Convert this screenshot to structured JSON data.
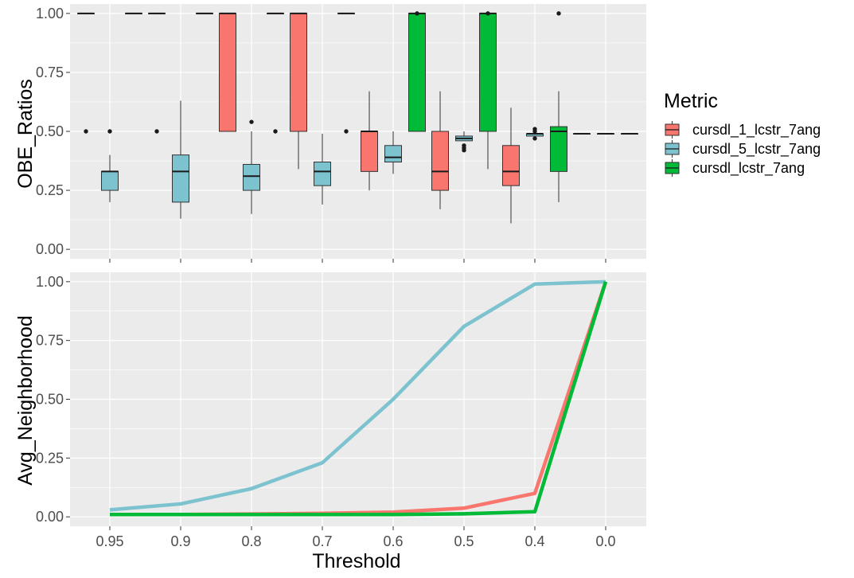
{
  "chart_data": [
    {
      "type": "boxplot",
      "ylabel": "OBE_Ratios",
      "xlabel": "",
      "ylim": [
        -0.04,
        1.04
      ],
      "y_ticks": [
        "0.00",
        "0.25",
        "0.50",
        "0.75",
        "1.00"
      ],
      "categories": [
        "0.95",
        "0.9",
        "0.8",
        "0.7",
        "0.6",
        "0.5",
        "0.4",
        "0.0"
      ],
      "series": [
        {
          "name": "cursdl_1_lcstr_7ang",
          "color": "#F8766D",
          "boxes": [
            {
              "category": "0.95",
              "lower": 1.0,
              "q1": 1.0,
              "median": 1.0,
              "q3": 1.0,
              "upper": 1.0,
              "outliers": [
                0.5
              ]
            },
            {
              "category": "0.9",
              "lower": 1.0,
              "q1": 1.0,
              "median": 1.0,
              "q3": 1.0,
              "upper": 1.0,
              "outliers": [
                0.5
              ]
            },
            {
              "category": "0.8",
              "lower": 0.5,
              "q1": 0.5,
              "median": 1.0,
              "q3": 1.0,
              "upper": 1.0,
              "outliers": []
            },
            {
              "category": "0.7",
              "lower": 0.34,
              "q1": 0.5,
              "median": 1.0,
              "q3": 1.0,
              "upper": 1.0,
              "outliers": []
            },
            {
              "category": "0.6",
              "lower": 0.25,
              "q1": 0.33,
              "median": 0.5,
              "q3": 0.5,
              "upper": 0.67,
              "outliers": []
            },
            {
              "category": "0.5",
              "lower": 0.17,
              "q1": 0.25,
              "median": 0.33,
              "q3": 0.5,
              "upper": 0.67,
              "outliers": []
            },
            {
              "category": "0.4",
              "lower": 0.11,
              "q1": 0.27,
              "median": 0.33,
              "q3": 0.44,
              "upper": 0.6,
              "outliers": []
            },
            {
              "category": "0.0",
              "lower": 0.49,
              "q1": 0.49,
              "median": 0.49,
              "q3": 0.49,
              "upper": 0.49,
              "outliers": []
            }
          ]
        },
        {
          "name": "cursdl_5_lcstr_7ang",
          "color": "#7CC3CF",
          "boxes": [
            {
              "category": "0.95",
              "lower": 0.2,
              "q1": 0.25,
              "median": 0.33,
              "q3": 0.33,
              "upper": 0.4,
              "outliers": [
                0.5
              ]
            },
            {
              "category": "0.9",
              "lower": 0.13,
              "q1": 0.2,
              "median": 0.33,
              "q3": 0.4,
              "upper": 0.63,
              "outliers": []
            },
            {
              "category": "0.8",
              "lower": 0.15,
              "q1": 0.25,
              "median": 0.31,
              "q3": 0.36,
              "upper": 0.5,
              "outliers": [
                0.54
              ]
            },
            {
              "category": "0.7",
              "lower": 0.19,
              "q1": 0.27,
              "median": 0.33,
              "q3": 0.37,
              "upper": 0.49,
              "outliers": []
            },
            {
              "category": "0.6",
              "lower": 0.32,
              "q1": 0.37,
              "median": 0.39,
              "q3": 0.44,
              "upper": 0.5,
              "outliers": []
            },
            {
              "category": "0.5",
              "lower": 0.46,
              "q1": 0.46,
              "median": 0.47,
              "q3": 0.48,
              "upper": 0.5,
              "outliers": [
                0.42,
                0.43,
                0.44
              ]
            },
            {
              "category": "0.4",
              "lower": 0.48,
              "q1": 0.48,
              "median": 0.49,
              "q3": 0.49,
              "upper": 0.49,
              "outliers": [
                0.47,
                0.5,
                0.51
              ]
            },
            {
              "category": "0.0",
              "lower": 0.49,
              "q1": 0.49,
              "median": 0.49,
              "q3": 0.49,
              "upper": 0.49,
              "outliers": []
            }
          ]
        },
        {
          "name": "cursdl_lcstr_7ang",
          "color": "#00BA38",
          "boxes": [
            {
              "category": "0.95",
              "lower": 1.0,
              "q1": 1.0,
              "median": 1.0,
              "q3": 1.0,
              "upper": 1.0,
              "outliers": []
            },
            {
              "category": "0.9",
              "lower": 1.0,
              "q1": 1.0,
              "median": 1.0,
              "q3": 1.0,
              "upper": 1.0,
              "outliers": []
            },
            {
              "category": "0.8",
              "lower": 1.0,
              "q1": 1.0,
              "median": 1.0,
              "q3": 1.0,
              "upper": 1.0,
              "outliers": [
                0.5
              ]
            },
            {
              "category": "0.7",
              "lower": 1.0,
              "q1": 1.0,
              "median": 1.0,
              "q3": 1.0,
              "upper": 1.0,
              "outliers": [
                0.5
              ]
            },
            {
              "category": "0.6",
              "lower": 0.5,
              "q1": 0.5,
              "median": 1.0,
              "q3": 1.0,
              "upper": 1.0,
              "outliers": [
                1.0
              ]
            },
            {
              "category": "0.5",
              "lower": 0.34,
              "q1": 0.5,
              "median": 1.0,
              "q3": 1.0,
              "upper": 1.0,
              "outliers": [
                1.0
              ]
            },
            {
              "category": "0.4",
              "lower": 0.2,
              "q1": 0.33,
              "median": 0.5,
              "q3": 0.52,
              "upper": 0.67,
              "outliers": [
                1.0
              ]
            },
            {
              "category": "0.0",
              "lower": 0.49,
              "q1": 0.49,
              "median": 0.49,
              "q3": 0.49,
              "upper": 0.49,
              "outliers": []
            }
          ]
        }
      ]
    },
    {
      "type": "line",
      "ylabel": "Avg_Neighborhood",
      "xlabel": "Threshold",
      "ylim": [
        -0.04,
        1.04
      ],
      "y_ticks": [
        "0.00",
        "0.25",
        "0.50",
        "0.75",
        "1.00"
      ],
      "categories": [
        "0.95",
        "0.9",
        "0.8",
        "0.7",
        "0.6",
        "0.5",
        "0.4",
        "0.0"
      ],
      "series": [
        {
          "name": "cursdl_1_lcstr_7ang",
          "color": "#F8766D",
          "values": [
            0.01,
            0.01,
            0.012,
            0.015,
            0.02,
            0.037,
            0.1,
            1.0
          ]
        },
        {
          "name": "cursdl_5_lcstr_7ang",
          "color": "#7CC3CF",
          "values": [
            0.03,
            0.055,
            0.12,
            0.23,
            0.5,
            0.81,
            0.99,
            1.0
          ]
        },
        {
          "name": "cursdl_lcstr_7ang",
          "color": "#00BA38",
          "values": [
            0.01,
            0.01,
            0.01,
            0.01,
            0.01,
            0.013,
            0.022,
            1.0
          ]
        }
      ]
    }
  ],
  "legend": {
    "title": "Metric",
    "position": "right",
    "items": [
      {
        "label": "cursdl_1_lcstr_7ang",
        "color": "#F8766D"
      },
      {
        "label": "cursdl_5_lcstr_7ang",
        "color": "#7CC3CF"
      },
      {
        "label": "cursdl_lcstr_7ang",
        "color": "#00BA38"
      }
    ]
  },
  "theme": {
    "panel_bg": "#EBEBEB",
    "grid_color": "#FFFFFF",
    "grid": true
  }
}
